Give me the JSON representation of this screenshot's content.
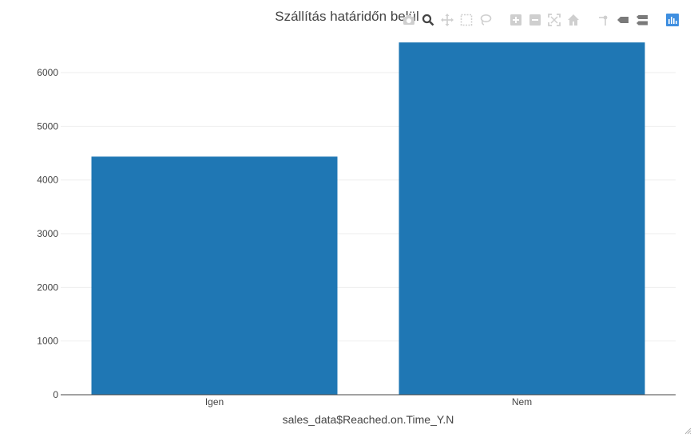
{
  "chart_data": {
    "type": "bar",
    "title": "Szállítás határidőn belül",
    "xlabel": "sales_data$Reached.on.Time_Y.N",
    "ylabel": "",
    "categories": [
      "Igen",
      "Nem"
    ],
    "values": [
      4436,
      6563
    ],
    "ylim": [
      0,
      6908
    ],
    "yticks": [
      0,
      1000,
      2000,
      3000,
      4000,
      5000,
      6000
    ],
    "ytick_labels": [
      "0",
      "1000",
      "2000",
      "3000",
      "4000",
      "5000",
      "6000"
    ],
    "bar_color": "#1f77b4",
    "grid": true,
    "legend": "none"
  },
  "modebar": {
    "icons": [
      "camera-icon",
      "zoom-icon",
      "pan-icon",
      "box-select-icon",
      "lasso-select-icon",
      "zoom-in-icon",
      "zoom-out-icon",
      "autoscale-icon",
      "reset-axes-icon",
      "spike-lines-icon",
      "hover-closest-icon",
      "hover-compare-icon",
      "plotly-logo-icon"
    ],
    "active_color": "#444444",
    "inactive_color": "#cfcfcf",
    "logo_color": "#3f8fe0"
  }
}
